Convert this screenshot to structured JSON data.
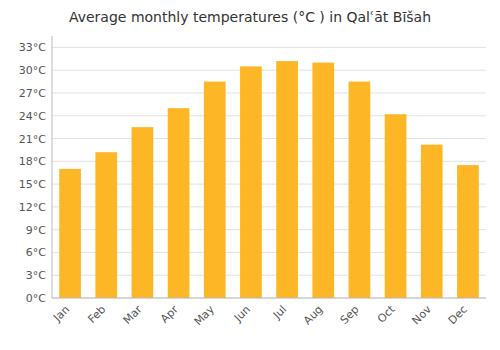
{
  "chart_data": {
    "type": "bar",
    "title": "Average monthly temperatures (°C ) in Qalʿāt Bīšah",
    "categories": [
      "Jan",
      "Feb",
      "Mar",
      "Apr",
      "May",
      "Jun",
      "Jul",
      "Aug",
      "Sep",
      "Oct",
      "Nov",
      "Dec"
    ],
    "values": [
      17.0,
      19.2,
      22.5,
      25.0,
      28.5,
      30.5,
      31.2,
      31.0,
      28.5,
      24.2,
      20.2,
      17.5
    ],
    "color": "#FDB726",
    "ylim": [
      0,
      34.5
    ],
    "yticks": [
      {
        "value": 0,
        "label": "0°C"
      },
      {
        "value": 3,
        "label": "3°C"
      },
      {
        "value": 6,
        "label": "6°C"
      },
      {
        "value": 9,
        "label": "9°C"
      },
      {
        "value": 12,
        "label": "12°C"
      },
      {
        "value": 15,
        "label": "15°C"
      },
      {
        "value": 18,
        "label": "18°C"
      },
      {
        "value": 21,
        "label": "21°C"
      },
      {
        "value": 24,
        "label": "24°C"
      },
      {
        "value": 27,
        "label": "27°C"
      },
      {
        "value": 30,
        "label": "30°C"
      },
      {
        "value": 33,
        "label": "33°C"
      }
    ],
    "grid": true
  }
}
